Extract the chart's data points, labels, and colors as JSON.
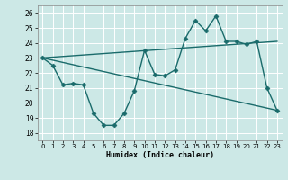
{
  "xlabel": "Humidex (Indice chaleur)",
  "xlim": [
    -0.5,
    23.5
  ],
  "ylim": [
    17.5,
    26.5
  ],
  "yticks": [
    18,
    19,
    20,
    21,
    22,
    23,
    24,
    25,
    26
  ],
  "xticks": [
    0,
    1,
    2,
    3,
    4,
    5,
    6,
    7,
    8,
    9,
    10,
    11,
    12,
    13,
    14,
    15,
    16,
    17,
    18,
    19,
    20,
    21,
    22,
    23
  ],
  "bg_color": "#cce8e6",
  "grid_color": "#ffffff",
  "line_color": "#1a6b6b",
  "series": [
    {
      "x": [
        0,
        1,
        2,
        3,
        4,
        5,
        6,
        7,
        8,
        9,
        10,
        11,
        12,
        13,
        14,
        15,
        16,
        17,
        18,
        19,
        20,
        21,
        22,
        23
      ],
      "y": [
        23.0,
        22.5,
        21.2,
        21.3,
        21.2,
        19.3,
        18.5,
        18.5,
        19.3,
        20.8,
        23.5,
        21.9,
        21.8,
        22.2,
        24.3,
        25.5,
        24.8,
        25.8,
        24.1,
        24.1,
        23.9,
        24.1,
        21.0,
        19.5
      ],
      "marker": "D",
      "markersize": 2.5,
      "linewidth": 1.0
    },
    {
      "x": [
        0,
        23
      ],
      "y": [
        23.0,
        19.5
      ],
      "marker": null,
      "linewidth": 1.0
    },
    {
      "x": [
        0,
        23
      ],
      "y": [
        23.0,
        24.1
      ],
      "marker": null,
      "linewidth": 1.0
    }
  ]
}
